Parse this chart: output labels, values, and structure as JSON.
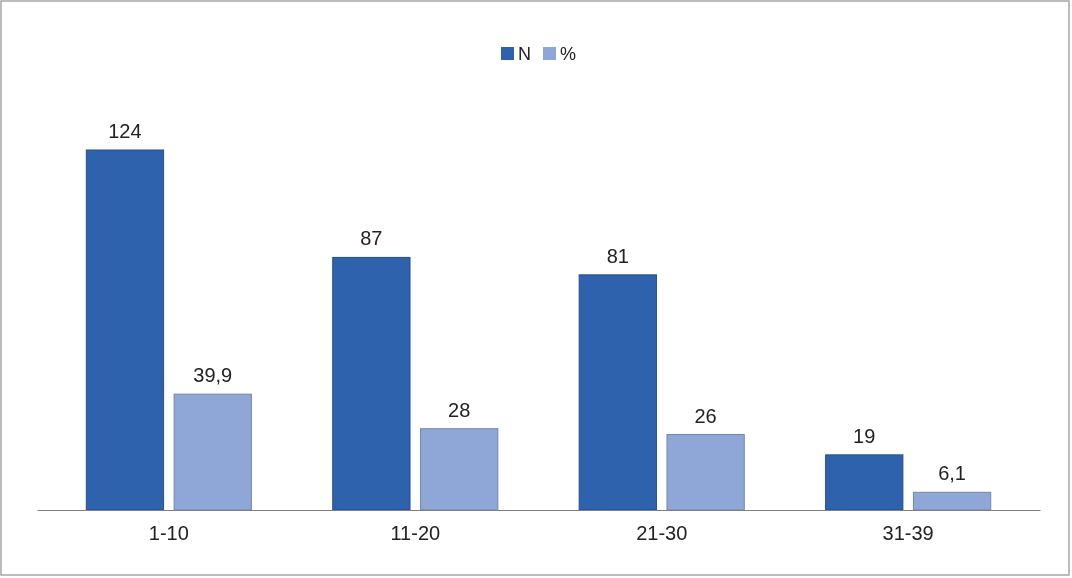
{
  "chart_data": {
    "type": "bar",
    "categories": [
      "1-10",
      "11-20",
      "21-30",
      "31-39"
    ],
    "series": [
      {
        "name": "N",
        "color": "#2f62ad",
        "values": [
          124,
          87,
          81,
          19
        ],
        "value_labels": [
          "124",
          "87",
          "81",
          "19"
        ]
      },
      {
        "name": "%",
        "color": "#8fa7d6",
        "values": [
          39.9,
          28,
          26,
          6.1
        ],
        "value_labels": [
          "39,9",
          "28",
          "26",
          "6,1"
        ]
      }
    ],
    "legend": "top"
  }
}
